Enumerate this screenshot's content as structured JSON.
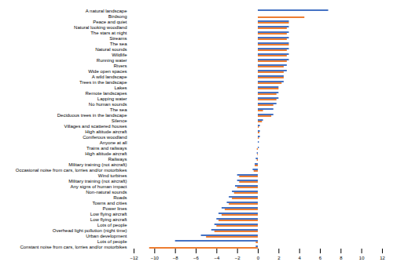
{
  "chart_data": {
    "type": "bar",
    "orientation": "horizontal",
    "categories": [
      "A natural landscape",
      "Birdsong",
      "Peace and quiet",
      "Natural looking woodland",
      "The stars at night",
      "Streams",
      "The sea",
      "Natural sounds",
      "Wildlife",
      "Running water",
      "Rivers",
      "Wide open spaces",
      "A wild landscape",
      "Trees in the landscape",
      "Lakes",
      "Remote landscapes",
      "Lapping water",
      "No human sounds",
      "The sea",
      "Deciduous trees in the landscape",
      "Silence",
      "Villages and scattered houses",
      "High altitude aircraft",
      "Coniferous woodland",
      "Anyone at all",
      "Trains and railways",
      "High altitude aircraft",
      "Railways",
      "Military training (not aircraft)",
      "Occasional noise from cars, lorries and/or motorbikes",
      "Wind turbines",
      "Military training (not aircraft)",
      "Any signs of human impact",
      "Non-natural sounds",
      "Roads",
      "Towns and cities",
      "Power lines",
      "Low flying aircraft",
      "Low flying aircraft",
      "Lots of people",
      "Overhead light pollution (night time)",
      "Urban development",
      "Lots of people",
      "Constant noise from cars, lorries and/or motorbikes"
    ],
    "series": [
      {
        "color": "#4472c4",
        "values": [
          6.8,
          0.0,
          3.0,
          3.0,
          3.0,
          3.0,
          3.0,
          3.0,
          3.0,
          3.0,
          2.8,
          2.8,
          2.5,
          2.5,
          2.0,
          2.0,
          2.0,
          1.8,
          1.5,
          1.5,
          0.5,
          0.2,
          0.2,
          0.2,
          0.1,
          0.1,
          -0.1,
          -0.2,
          -0.3,
          -0.5,
          -2.0,
          -2.0,
          -2.2,
          -2.5,
          -2.8,
          -3.0,
          -3.5,
          -3.8,
          -4.0,
          -4.2,
          -4.5,
          -5.5,
          -8.0,
          -0.2
        ]
      },
      {
        "color": "#ed7d31",
        "values": [
          0.0,
          4.5,
          3.0,
          2.8,
          2.8,
          2.8,
          3.0,
          2.8,
          2.8,
          2.8,
          2.5,
          2.5,
          2.5,
          2.3,
          2.0,
          1.8,
          1.8,
          1.5,
          0.5,
          1.3,
          0.4,
          0.1,
          0.15,
          0.1,
          0.0,
          -0.1,
          -0.05,
          -0.1,
          -0.3,
          -0.4,
          -1.8,
          -1.8,
          -2.0,
          -2.3,
          -2.5,
          -2.8,
          -3.2,
          -3.5,
          -3.8,
          -4.0,
          -4.2,
          -5.0,
          -0.2,
          -10.5
        ]
      }
    ],
    "xlim": [
      -12,
      12
    ],
    "xticks": [
      -12,
      -10,
      -8,
      -6,
      -4,
      -2,
      0,
      2,
      4,
      6,
      8,
      10,
      12
    ],
    "grid": false
  }
}
